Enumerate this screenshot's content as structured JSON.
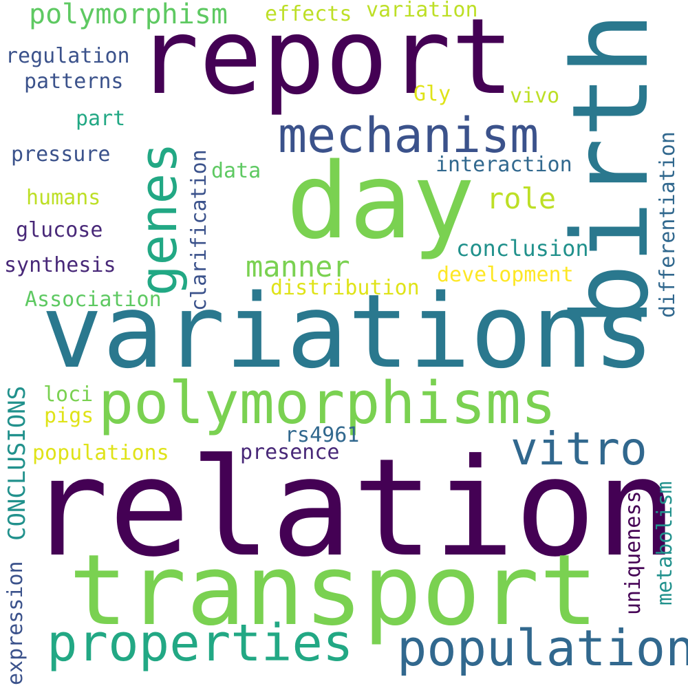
{
  "words": [
    {
      "text": "relation",
      "color": "#440154"
    },
    {
      "text": "variations",
      "color": "#2a788e"
    },
    {
      "text": "transport",
      "color": "#7ad151"
    },
    {
      "text": "report",
      "color": "#440154"
    },
    {
      "text": "birth",
      "color": "#2a788e"
    },
    {
      "text": "day",
      "color": "#7ad151"
    },
    {
      "text": "polymorphisms",
      "color": "#7ad151"
    },
    {
      "text": "population",
      "color": "#31688e"
    },
    {
      "text": "properties",
      "color": "#22a884"
    },
    {
      "text": "genes",
      "color": "#22a884"
    },
    {
      "text": "mechanism",
      "color": "#3b528b"
    },
    {
      "text": "vitro",
      "color": "#31688e"
    },
    {
      "text": "CONCLUSIONS",
      "color": "#21918c"
    },
    {
      "text": "polymorphism",
      "color": "#5ec962"
    },
    {
      "text": "manner",
      "color": "#7ad151"
    },
    {
      "text": "role",
      "color": "#bddf26"
    },
    {
      "text": "conclusion",
      "color": "#21918c"
    },
    {
      "text": "development",
      "color": "#fde725"
    },
    {
      "text": "differentiation",
      "color": "#31688e"
    },
    {
      "text": "metabolism",
      "color": "#21918c"
    },
    {
      "text": "uniqueness",
      "color": "#440154"
    },
    {
      "text": "expression",
      "color": "#3b528b"
    },
    {
      "text": "clarification",
      "color": "#3b528b"
    },
    {
      "text": "distribution",
      "color": "#dfe318"
    },
    {
      "text": "Association",
      "color": "#5ec962"
    },
    {
      "text": "interaction",
      "color": "#31688e"
    },
    {
      "text": "variation",
      "color": "#bddf26"
    },
    {
      "text": "effects",
      "color": "#bddf26"
    },
    {
      "text": "regulation",
      "color": "#3b528b"
    },
    {
      "text": "patterns",
      "color": "#3b528b"
    },
    {
      "text": "synthesis",
      "color": "#482878"
    },
    {
      "text": "glucose",
      "color": "#482878"
    },
    {
      "text": "humans",
      "color": "#bddf26"
    },
    {
      "text": "pressure",
      "color": "#3b528b"
    },
    {
      "text": "populations",
      "color": "#dfe318"
    },
    {
      "text": "presence",
      "color": "#482878"
    },
    {
      "text": "rs4961",
      "color": "#31688e"
    },
    {
      "text": "data",
      "color": "#5ec962"
    },
    {
      "text": "part",
      "color": "#22a884"
    },
    {
      "text": "Gly",
      "color": "#dfe318"
    },
    {
      "text": "vivo",
      "color": "#bddf26"
    },
    {
      "text": "loci",
      "color": "#7ad151"
    },
    {
      "text": "pigs",
      "color": "#dfe318"
    }
  ]
}
